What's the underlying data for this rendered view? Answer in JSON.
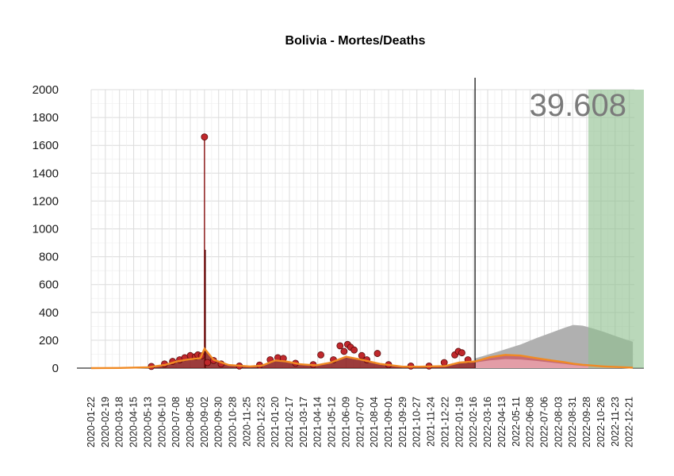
{
  "chart_data": {
    "type": "line",
    "title": "Bolivia - Mortes/Deaths",
    "xlabel": "",
    "ylabel": "",
    "ylim": [
      0,
      2000
    ],
    "xlim": [
      "2020-01-22",
      "2022-12-31"
    ],
    "grid": true,
    "legend": "none",
    "yticks": [
      0,
      200,
      400,
      600,
      800,
      1000,
      1200,
      1400,
      1600,
      1800,
      2000
    ],
    "xticks": [
      "2020-01-22",
      "2020-02-19",
      "2020-03-18",
      "2020-04-15",
      "2020-05-13",
      "2020-06-10",
      "2020-07-08",
      "2020-08-05",
      "2020-09-02",
      "2020-09-30",
      "2020-10-28",
      "2020-11-25",
      "2020-12-23",
      "2021-01-20",
      "2021-02-17",
      "2021-03-17",
      "2021-04-14",
      "2021-05-12",
      "2021-06-09",
      "2021-07-07",
      "2021-08-04",
      "2021-09-01",
      "2021-09-29",
      "2021-10-27",
      "2021-11-24",
      "2021-12-22",
      "2022-01-19",
      "2022-02-16",
      "2022-03-16",
      "2022-04-13",
      "2022-05-11",
      "2022-06-08",
      "2022-07-06",
      "2022-08-03",
      "2022-08-31",
      "2022-09-28",
      "2022-10-26",
      "2022-11-23",
      "2022-12-21"
    ],
    "forecast_start": "2022-02-19",
    "highlight_start": "2022-10-01",
    "total_label": "39.608",
    "observed_smooth": {
      "x": [
        "2020-01-22",
        "2020-03-18",
        "2020-05-13",
        "2020-06-15",
        "2020-07-10",
        "2020-08-01",
        "2020-08-25",
        "2020-09-02",
        "2020-09-20",
        "2020-10-20",
        "2020-12-01",
        "2020-12-25",
        "2021-01-20",
        "2021-02-10",
        "2021-03-10",
        "2021-04-10",
        "2021-05-10",
        "2021-06-09",
        "2021-07-07",
        "2021-08-15",
        "2021-09-29",
        "2021-11-01",
        "2021-12-22",
        "2022-01-19",
        "2022-02-19"
      ],
      "y": [
        0,
        1,
        6,
        22,
        48,
        62,
        72,
        140,
        60,
        22,
        12,
        18,
        55,
        48,
        28,
        20,
        40,
        82,
        62,
        30,
        10,
        10,
        15,
        40,
        48
      ]
    },
    "observed_points": {
      "x": [
        "2020-05-20",
        "2020-06-15",
        "2020-07-01",
        "2020-07-15",
        "2020-07-25",
        "2020-08-05",
        "2020-08-15",
        "2020-08-20",
        "2020-08-27",
        "2020-09-02",
        "2020-09-08",
        "2020-09-20",
        "2020-10-05",
        "2020-11-10",
        "2020-12-20",
        "2021-01-10",
        "2021-01-25",
        "2021-02-05",
        "2021-03-01",
        "2021-04-05",
        "2021-04-20",
        "2021-05-15",
        "2021-05-28",
        "2021-06-05",
        "2021-06-12",
        "2021-06-18",
        "2021-06-25",
        "2021-07-10",
        "2021-07-20",
        "2021-08-10",
        "2021-09-01",
        "2021-10-15",
        "2021-11-20",
        "2021-12-20",
        "2022-01-10",
        "2022-01-17",
        "2022-01-24",
        "2022-02-05"
      ],
      "y": [
        12,
        30,
        48,
        60,
        75,
        90,
        82,
        95,
        88,
        1660,
        40,
        55,
        30,
        15,
        22,
        60,
        75,
        70,
        35,
        25,
        95,
        60,
        160,
        120,
        170,
        150,
        130,
        90,
        60,
        105,
        25,
        15,
        15,
        40,
        95,
        120,
        110,
        60
      ]
    },
    "spike": {
      "x": "2020-09-02",
      "y": 1660,
      "secondary_y": 850
    },
    "projection": {
      "x": [
        "2022-02-19",
        "2022-03-20",
        "2022-04-20",
        "2022-05-20",
        "2022-06-20",
        "2022-07-20",
        "2022-08-15",
        "2022-09-01",
        "2022-09-20",
        "2022-10-10",
        "2022-11-01",
        "2022-11-20",
        "2022-12-10",
        "2022-12-28"
      ],
      "upper": [
        70,
        100,
        135,
        170,
        215,
        255,
        290,
        310,
        305,
        285,
        260,
        235,
        210,
        190
      ],
      "lower": [
        40,
        55,
        65,
        62,
        52,
        40,
        30,
        22,
        16,
        12,
        8,
        6,
        4,
        2
      ],
      "mean": [
        55,
        78,
        95,
        90,
        72,
        55,
        42,
        32,
        24,
        18,
        12,
        9,
        6,
        3
      ]
    }
  }
}
